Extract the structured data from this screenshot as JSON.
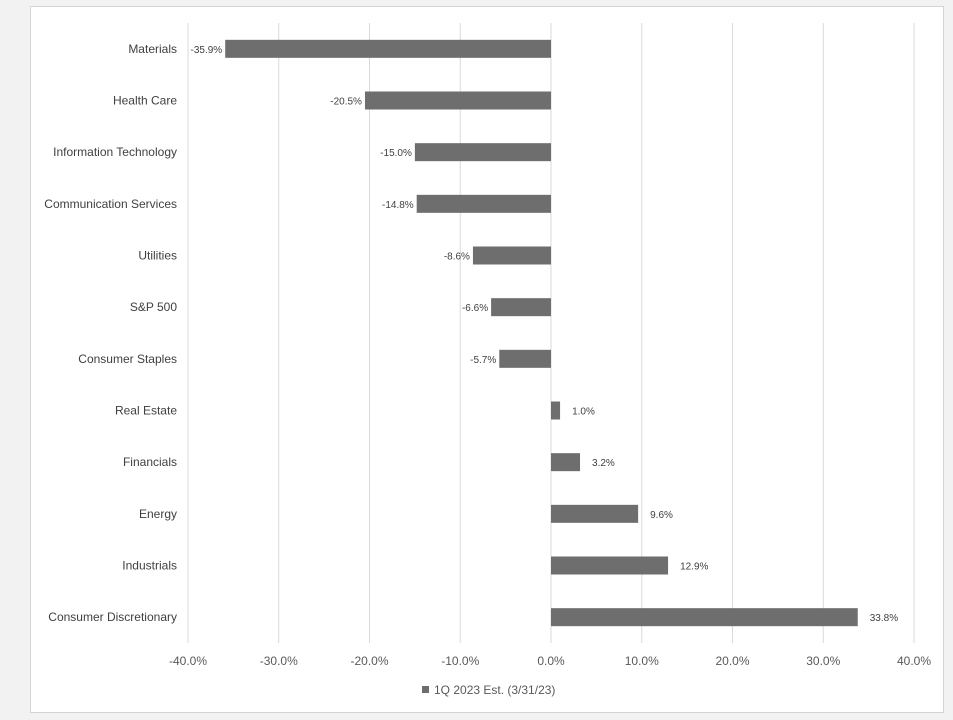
{
  "chart_data": {
    "type": "bar",
    "orientation": "horizontal",
    "categories": [
      "Materials",
      "Health Care",
      "Information Technology",
      "Communication Services",
      "Utilities",
      "S&P 500",
      "Consumer Staples",
      "Real Estate",
      "Financials",
      "Energy",
      "Industrials",
      "Consumer Discretionary"
    ],
    "series": [
      {
        "name": "1Q 2023 Est. (3/31/23)",
        "values": [
          -35.9,
          -20.5,
          -15.0,
          -14.8,
          -8.6,
          -6.6,
          -5.7,
          1.0,
          3.2,
          9.6,
          12.9,
          33.8
        ],
        "labels": [
          "-35.9%",
          "-20.5%",
          "-15.0%",
          "-14.8%",
          "-8.6%",
          "-6.6%",
          "-5.7%",
          "1.0%",
          "3.2%",
          "9.6%",
          "12.9%",
          "33.8%"
        ]
      }
    ],
    "xlim": [
      -40,
      40
    ],
    "x_ticks": [
      -40,
      -30,
      -20,
      -10,
      0,
      10,
      20,
      30,
      40
    ],
    "x_tick_labels": [
      "-40.0%",
      "-30.0%",
      "-20.0%",
      "-10.0%",
      "0.0%",
      "10.0%",
      "20.0%",
      "30.0%",
      "40.0%"
    ],
    "grid": true,
    "legend_position": "bottom",
    "colors": {
      "bar": "#6e6e6e",
      "grid": "#d9d9d9",
      "text": "#404040"
    }
  }
}
